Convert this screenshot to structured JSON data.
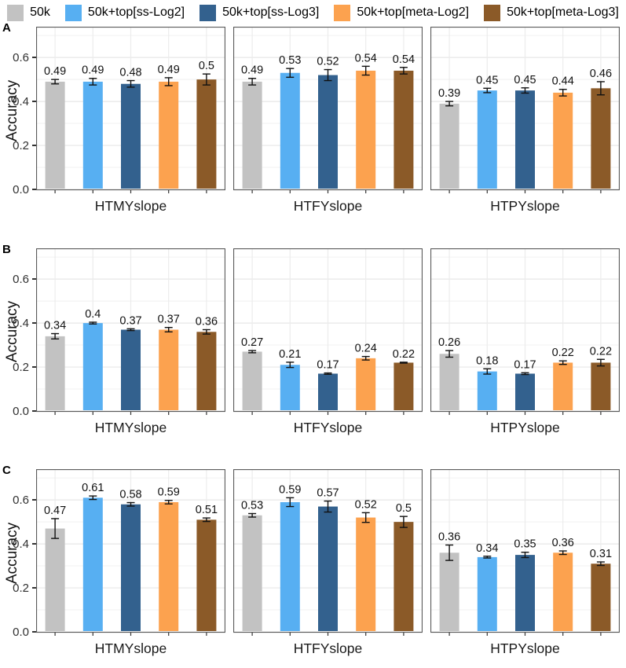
{
  "legend": {
    "items": [
      {
        "label": "50k",
        "color": "#c2c2c2"
      },
      {
        "label": "50k+top[ss-Log2]",
        "color": "#57aff2"
      },
      {
        "label": "50k+top[ss-Log3]",
        "color": "#33618e"
      },
      {
        "label": "50k+top[meta-Log2]",
        "color": "#fca24f"
      },
      {
        "label": "50k+top[meta-Log3]",
        "color": "#8b5a28"
      }
    ]
  },
  "figure": {
    "yticks": [
      0.0,
      0.2,
      0.4,
      0.6
    ],
    "grid": "on",
    "legend_position": "top"
  },
  "chart_data": [
    {
      "type": "bar",
      "panel": "A",
      "ylabel": "Accuracy",
      "ylim": [
        0,
        0.74
      ],
      "categories": [
        "HTMYslope",
        "HTFYslope",
        "HTPYslope"
      ],
      "series": [
        {
          "name": "50k",
          "color": "#c2c2c2",
          "values": [
            0.49,
            0.49,
            0.39
          ],
          "errors": [
            0.01,
            0.015,
            0.01
          ]
        },
        {
          "name": "50k+top[ss-Log2]",
          "color": "#57aff2",
          "values": [
            0.49,
            0.53,
            0.45
          ],
          "errors": [
            0.015,
            0.02,
            0.01
          ]
        },
        {
          "name": "50k+top[ss-Log3]",
          "color": "#33618e",
          "values": [
            0.48,
            0.52,
            0.45
          ],
          "errors": [
            0.015,
            0.025,
            0.012
          ]
        },
        {
          "name": "50k+top[meta-Log2]",
          "color": "#fca24f",
          "values": [
            0.49,
            0.54,
            0.44
          ],
          "errors": [
            0.018,
            0.02,
            0.015
          ]
        },
        {
          "name": "50k+top[meta-Log3]",
          "color": "#8b5a28",
          "values": [
            0.5,
            0.54,
            0.46
          ],
          "errors": [
            0.025,
            0.015,
            0.03
          ]
        }
      ]
    },
    {
      "type": "bar",
      "panel": "B",
      "ylabel": "Accuracy",
      "ylim": [
        0,
        0.74
      ],
      "categories": [
        "HTMYslope",
        "HTFYslope",
        "HTPYslope"
      ],
      "series": [
        {
          "name": "50k",
          "color": "#c2c2c2",
          "values": [
            0.34,
            0.27,
            0.26
          ],
          "errors": [
            0.012,
            0.005,
            0.015
          ]
        },
        {
          "name": "50k+top[ss-Log2]",
          "color": "#57aff2",
          "values": [
            0.4,
            0.21,
            0.18
          ],
          "errors": [
            0.004,
            0.012,
            0.012
          ]
        },
        {
          "name": "50k+top[ss-Log3]",
          "color": "#33618e",
          "values": [
            0.37,
            0.17,
            0.17
          ],
          "errors": [
            0.004,
            0.003,
            0.004
          ]
        },
        {
          "name": "50k+top[meta-Log2]",
          "color": "#fca24f",
          "values": [
            0.37,
            0.24,
            0.22
          ],
          "errors": [
            0.01,
            0.008,
            0.008
          ]
        },
        {
          "name": "50k+top[meta-Log3]",
          "color": "#8b5a28",
          "values": [
            0.36,
            0.22,
            0.22
          ],
          "errors": [
            0.01,
            0.002,
            0.015
          ]
        }
      ]
    },
    {
      "type": "bar",
      "panel": "C",
      "ylabel": "Accuracy",
      "ylim": [
        0,
        0.74
      ],
      "categories": [
        "HTMYslope",
        "HTFYslope",
        "HTPYslope"
      ],
      "series": [
        {
          "name": "50k",
          "color": "#c2c2c2",
          "values": [
            0.47,
            0.53,
            0.36
          ],
          "errors": [
            0.045,
            0.008,
            0.035
          ]
        },
        {
          "name": "50k+top[ss-Log2]",
          "color": "#57aff2",
          "values": [
            0.61,
            0.59,
            0.34
          ],
          "errors": [
            0.008,
            0.02,
            0.004
          ]
        },
        {
          "name": "50k+top[ss-Log3]",
          "color": "#33618e",
          "values": [
            0.58,
            0.57,
            0.35
          ],
          "errors": [
            0.008,
            0.025,
            0.012
          ]
        },
        {
          "name": "50k+top[meta-Log2]",
          "color": "#fca24f",
          "values": [
            0.59,
            0.52,
            0.36
          ],
          "errors": [
            0.008,
            0.022,
            0.008
          ]
        },
        {
          "name": "50k+top[meta-Log3]",
          "color": "#8b5a28",
          "values": [
            0.51,
            0.5,
            0.31
          ],
          "errors": [
            0.008,
            0.025,
            0.008
          ]
        }
      ]
    }
  ]
}
